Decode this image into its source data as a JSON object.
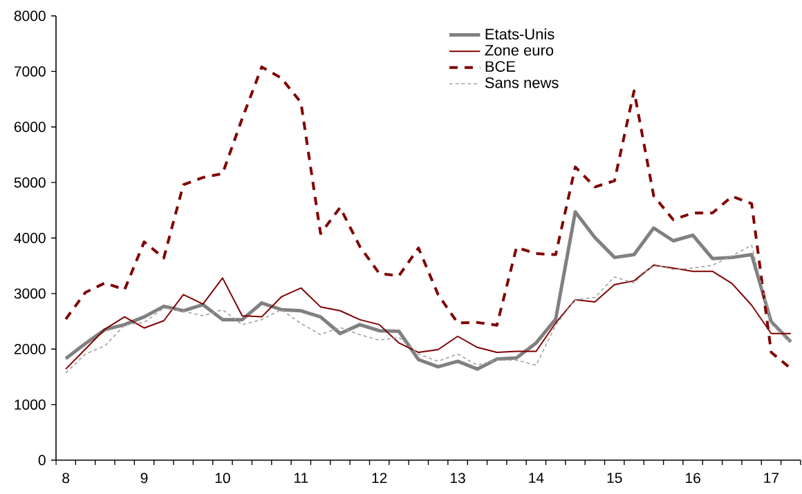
{
  "chart_data": {
    "type": "line",
    "categories": [
      "8",
      null,
      null,
      null,
      "9",
      null,
      null,
      null,
      "10",
      null,
      null,
      null,
      "11",
      null,
      null,
      null,
      "12",
      null,
      null,
      null,
      "13",
      null,
      null,
      null,
      "14",
      null,
      null,
      null,
      "15",
      null,
      null,
      null,
      "16",
      null,
      null,
      null,
      "17",
      null
    ],
    "series": [
      {
        "name": "Etats-Unis",
        "color": "#808080",
        "line_style": "solid",
        "values": [
          1830,
          2100,
          2350,
          2440,
          2580,
          2770,
          2690,
          2800,
          2530,
          2530,
          2830,
          2710,
          2690,
          2580,
          2280,
          2440,
          2330,
          2320,
          1810,
          1680,
          1780,
          1640,
          1820,
          1840,
          2110,
          2540,
          4470,
          4010,
          3650,
          3700,
          4180,
          3950,
          4050,
          3630,
          3650,
          3700,
          2490,
          2130
        ]
      },
      {
        "name": "Zone euro",
        "color": "#800000",
        "line_style": "solid",
        "values": [
          1640,
          2000,
          2360,
          2580,
          2380,
          2510,
          2980,
          2810,
          3280,
          2600,
          2580,
          2940,
          3100,
          2760,
          2690,
          2530,
          2440,
          2110,
          1940,
          1990,
          2230,
          2030,
          1940,
          1960,
          1960,
          2470,
          2890,
          2850,
          3160,
          3230,
          3510,
          3460,
          3400,
          3400,
          3180,
          2790,
          2280,
          2280
        ]
      },
      {
        "name": "BCE",
        "color": "#800000",
        "line_style": "dashed",
        "values": [
          2540,
          3020,
          3190,
          3070,
          3930,
          3640,
          4960,
          5090,
          5160,
          6150,
          7080,
          6880,
          6440,
          4080,
          4550,
          3850,
          3360,
          3320,
          3820,
          2980,
          2470,
          2480,
          2430,
          3830,
          3720,
          3700,
          5280,
          4920,
          5030,
          6650,
          4760,
          4330,
          4450,
          4450,
          4750,
          4620,
          1940,
          1650
        ]
      },
      {
        "name": "Sans news",
        "color": "#a0a0a0",
        "line_style": "dashed",
        "values": [
          1570,
          1910,
          2060,
          2430,
          2480,
          2740,
          2680,
          2600,
          2710,
          2440,
          2530,
          2710,
          2460,
          2260,
          2390,
          2260,
          2160,
          2210,
          1910,
          1780,
          1910,
          1710,
          1800,
          1800,
          1710,
          2430,
          2890,
          2930,
          3300,
          3190,
          3530,
          3430,
          3460,
          3510,
          3680,
          3870,
          2460,
          2110
        ]
      }
    ],
    "ylim": [
      0,
      8000
    ],
    "yticks": [
      0,
      1000,
      2000,
      3000,
      4000,
      5000,
      6000,
      7000,
      8000
    ],
    "legend": "top"
  }
}
